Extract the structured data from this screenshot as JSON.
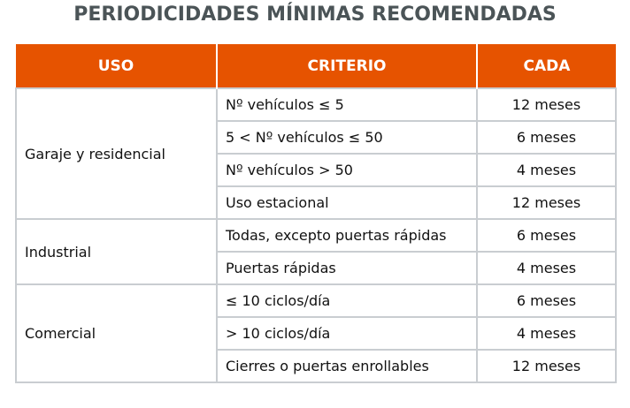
{
  "title": "PERIODICIDADES MÍNIMAS RECOMENDADAS",
  "headers": [
    "USO",
    "CRITERIO",
    "CADA"
  ],
  "groups": [
    {
      "uso": "Garaje y residencial",
      "rows": [
        {
          "criterio": "Nº vehículos ≤ 5",
          "cada": "12 meses"
        },
        {
          "criterio": "5 < Nº vehículos ≤ 50",
          "cada": "6 meses"
        },
        {
          "criterio": "Nº vehículos > 50",
          "cada": "4 meses"
        },
        {
          "criterio": "Uso estacional",
          "cada": "12 meses"
        }
      ]
    },
    {
      "uso": "Industrial",
      "rows": [
        {
          "criterio": "Todas, excepto puertas rápidas",
          "cada": "6 meses"
        },
        {
          "criterio": "Puertas rápidas",
          "cada": "4 meses"
        }
      ]
    },
    {
      "uso": "Comercial",
      "rows": [
        {
          "criterio": "≤ 10 ciclos/día",
          "cada": "6 meses"
        },
        {
          "criterio": "> 10 ciclos/día",
          "cada": "4 meses"
        },
        {
          "criterio": "Cierres o puertas enrollables",
          "cada": "12 meses"
        }
      ]
    }
  ]
}
